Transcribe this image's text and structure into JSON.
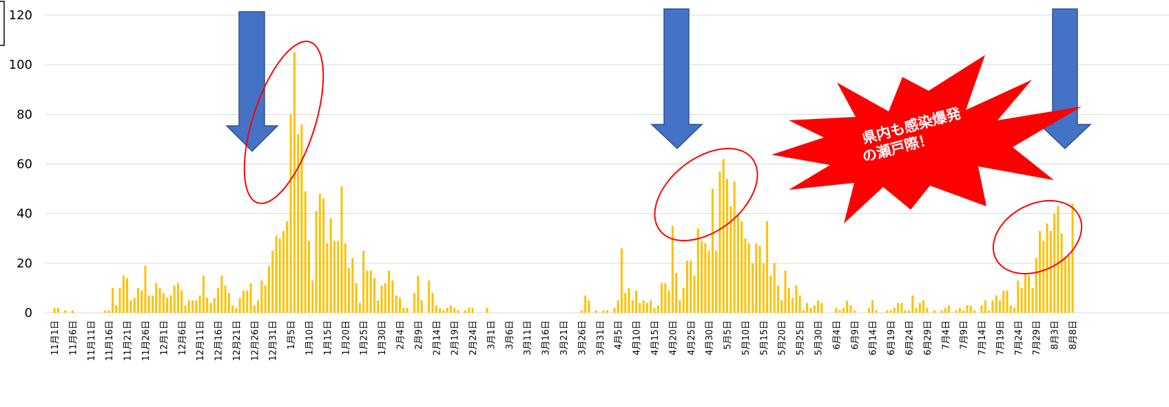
{
  "chart_data": {
    "type": "bar",
    "annotation": [
      "県内も感染爆発",
      "の瀬戸際！"
    ],
    "color": "#FFC000",
    "ylim": [
      0,
      120
    ],
    "yticks": [
      0,
      20,
      40,
      60,
      80,
      100,
      120
    ],
    "grid": true,
    "categories": [
      "11月1日",
      null,
      null,
      null,
      null,
      "11月6日",
      null,
      null,
      null,
      null,
      "11月11日",
      null,
      null,
      null,
      null,
      "11月16日",
      null,
      null,
      null,
      null,
      "11月21日",
      null,
      null,
      null,
      null,
      "11月26日",
      null,
      null,
      null,
      null,
      "12月1日",
      null,
      null,
      null,
      null,
      "12月6日",
      null,
      null,
      null,
      null,
      "12月11日",
      null,
      null,
      null,
      null,
      "12月16日",
      null,
      null,
      null,
      null,
      "12月21日",
      null,
      null,
      null,
      null,
      "12月26日",
      null,
      null,
      null,
      null,
      "12月31日",
      null,
      null,
      null,
      null,
      "1月5日",
      null,
      null,
      null,
      null,
      "1月10日",
      null,
      null,
      null,
      null,
      "1月15日",
      null,
      null,
      null,
      null,
      "1月20日",
      null,
      null,
      null,
      null,
      "1月25日",
      null,
      null,
      null,
      null,
      "1月30日",
      null,
      null,
      null,
      null,
      "2月4日",
      null,
      null,
      null,
      null,
      "2月9日",
      null,
      null,
      null,
      null,
      "2月14日",
      null,
      null,
      null,
      null,
      "2月19日",
      null,
      null,
      null,
      null,
      "2月24日",
      null,
      null,
      null,
      null,
      "3月1日",
      null,
      null,
      null,
      null,
      "3月6日",
      null,
      null,
      null,
      null,
      "3月11日",
      null,
      null,
      null,
      null,
      "3月16日",
      null,
      null,
      null,
      null,
      "3月21日",
      null,
      null,
      null,
      null,
      "3月26日",
      null,
      null,
      null,
      null,
      "3月31日",
      null,
      null,
      null,
      null,
      "4月5日",
      null,
      null,
      null,
      null,
      "4月10日",
      null,
      null,
      null,
      null,
      "4月15日",
      null,
      null,
      null,
      null,
      "4月20日",
      null,
      null,
      null,
      null,
      "4月25日",
      null,
      null,
      null,
      null,
      "4月30日",
      null,
      null,
      null,
      null,
      "5月5日",
      null,
      null,
      null,
      null,
      "5月10日",
      null,
      null,
      null,
      null,
      "5月15日",
      null,
      null,
      null,
      null,
      "5月20日",
      null,
      null,
      null,
      null,
      "5月25日",
      null,
      null,
      null,
      null,
      "5月30日",
      null,
      null,
      null,
      null,
      "6月4日",
      null,
      null,
      null,
      null,
      "6月9日",
      null,
      null,
      null,
      null,
      "6月14日",
      null,
      null,
      null,
      null,
      "6月19日",
      null,
      null,
      null,
      null,
      "6月24日",
      null,
      null,
      null,
      null,
      "6月29日",
      null,
      null,
      null,
      null,
      "7月4日",
      null,
      null,
      null,
      null,
      "7月9日",
      null,
      null,
      null,
      null,
      "7月14日",
      null,
      null,
      null,
      null,
      "7月19日",
      null,
      null,
      null,
      null,
      "7月24日",
      null,
      null,
      null,
      null,
      "7月29日",
      null,
      null,
      null,
      null,
      "8月3日",
      null,
      null,
      null,
      null,
      "8月8日"
    ],
    "values": [
      2,
      2,
      0,
      1,
      0,
      1,
      0,
      0,
      0,
      0,
      0,
      0,
      0,
      0,
      1,
      1,
      10,
      3,
      10,
      15,
      14,
      5,
      6,
      10,
      9,
      19,
      7,
      7,
      12,
      10,
      8,
      6,
      7,
      11,
      12,
      9,
      3,
      5,
      5,
      5,
      7,
      15,
      6,
      4,
      6,
      10,
      15,
      11,
      8,
      3,
      2,
      6,
      9,
      9,
      12,
      3,
      5,
      13,
      11,
      19,
      25,
      31,
      30,
      33,
      37,
      80,
      105,
      72,
      76,
      49,
      29,
      13,
      41,
      48,
      46,
      28,
      38,
      29,
      29,
      51,
      28,
      18,
      22,
      12,
      4,
      25,
      17,
      17,
      14,
      5,
      11,
      12,
      17,
      13,
      7,
      6,
      2,
      2,
      0,
      8,
      15,
      5,
      0,
      13,
      8,
      3,
      2,
      1,
      2,
      3,
      2,
      1,
      0,
      1,
      2,
      2,
      0,
      0,
      0,
      2,
      0,
      0,
      0,
      0,
      0,
      0,
      0,
      0,
      0,
      0,
      0,
      0,
      0,
      0,
      0,
      0,
      0,
      0,
      0,
      0,
      0,
      0,
      0,
      0,
      0,
      1,
      7,
      5,
      0,
      1,
      0,
      1,
      1,
      0,
      2,
      5,
      26,
      8,
      10,
      5,
      9,
      4,
      5,
      4,
      5,
      2,
      3,
      12,
      12,
      9,
      35,
      16,
      5,
      10,
      21,
      21,
      15,
      34,
      29,
      28,
      25,
      50,
      25,
      57,
      62,
      54,
      43,
      53,
      40,
      37,
      30,
      28,
      20,
      28,
      27,
      20,
      37,
      15,
      20,
      11,
      5,
      17,
      10,
      6,
      11,
      7,
      1,
      4,
      2,
      3,
      5,
      4,
      0,
      0,
      0,
      2,
      1,
      2,
      5,
      3,
      1,
      0,
      0,
      0,
      2,
      5,
      1,
      0,
      0,
      1,
      1,
      2,
      4,
      4,
      1,
      1,
      7,
      2,
      4,
      5,
      2,
      0,
      1,
      0,
      1,
      2,
      3,
      0,
      1,
      2,
      1,
      3,
      3,
      1,
      0,
      3,
      5,
      1,
      5,
      7,
      5,
      9,
      9,
      3,
      2,
      13,
      10,
      16,
      15,
      10,
      22,
      33,
      29,
      36,
      33,
      40,
      43,
      32,
      22,
      23,
      44
    ]
  }
}
